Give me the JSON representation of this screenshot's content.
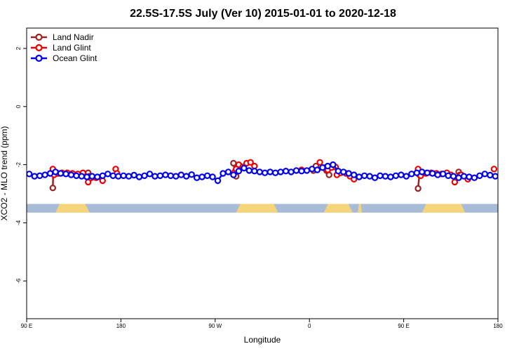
{
  "chart_data": {
    "type": "line",
    "title": "22.5S-17.5S July (Ver 10)   2015-01-01 to 2020-12-18",
    "xlabel": "Longitude",
    "ylabel": "XCO2 - MLO trend (ppm)",
    "xlim": [
      90,
      450
    ],
    "ylim": [
      -7.3,
      2.7
    ],
    "x_ticks": [
      {
        "value": 90,
        "label": "90 E"
      },
      {
        "value": 162,
        "label": "180"
      },
      {
        "value": 234,
        "label": "90 W"
      },
      {
        "value": 306,
        "label": "0"
      },
      {
        "value": 378,
        "label": "90 E"
      },
      {
        "value": 450,
        "label": "180"
      }
    ],
    "y_ticks": [
      {
        "value": 2,
        "label": "2"
      },
      {
        "value": 0,
        "label": "0"
      },
      {
        "value": -2,
        "label": "-2"
      },
      {
        "value": -4,
        "label": "-4"
      },
      {
        "value": -6,
        "label": "-6"
      }
    ],
    "land_strip": {
      "y_range": [
        -3.65,
        -3.35
      ],
      "ocean_color": "#a8bcd8",
      "land_color": "#f5d57a",
      "land_segments": [
        [
          112,
          138
        ],
        [
          250,
          282
        ],
        [
          317,
          339
        ],
        [
          343,
          346
        ],
        [
          392,
          425
        ]
      ]
    },
    "legend": {
      "position": "top-left"
    },
    "series": [
      {
        "name": "Land Nadir",
        "color": "#9b2323",
        "segments": [
          [
            [
              110,
              -2.8
            ],
            [
              110.3,
              -2.28
            ],
            [
              112,
              -2.3
            ]
          ],
          [
            [
              137,
              -2.28
            ],
            [
              138,
              -2.4
            ]
          ],
          [
            [
              248,
              -1.95
            ],
            [
              249,
              -2.25
            ],
            [
              250,
              -2.4
            ]
          ],
          [
            [
              253,
              -2.05
            ],
            [
              255,
              -2.1
            ]
          ],
          [
            [
              309,
              -2.2
            ],
            [
              311,
              -2.05
            ]
          ],
          [
            [
              319,
              -2.2
            ],
            [
              321,
              -2.35
            ]
          ],
          [
            [
              389,
              -2.82
            ],
            [
              390,
              -2.35
            ]
          ],
          [
            [
              420,
              -2.25
            ],
            [
              421,
              -2.35
            ]
          ]
        ]
      },
      {
        "name": "Land Glint",
        "color": "#ee0000",
        "segments": [
          [
            [
              110,
              -2.15
            ],
            [
              111,
              -2.35
            ],
            [
              114,
              -2.3
            ],
            [
              117,
              -2.28
            ],
            [
              121,
              -2.28
            ],
            [
              125,
              -2.3
            ],
            [
              129,
              -2.32
            ],
            [
              133,
              -2.28
            ],
            [
              137,
              -2.6
            ],
            [
              143,
              -2.45
            ],
            [
              148,
              -2.55
            ]
          ],
          [
            [
              158,
              -2.15
            ],
            [
              159,
              -2.3
            ]
          ],
          [
            [
              249,
              -2.25
            ],
            [
              250,
              -2.15
            ],
            [
              252,
              -2.0
            ],
            [
              255,
              -2.08
            ],
            [
              258,
              -1.95
            ],
            [
              261,
              -1.92
            ],
            [
              264,
              -2.05
            ]
          ],
          [
            [
              300,
              -2.18
            ]
          ],
          [
            [
              314,
              -1.92
            ],
            [
              316,
              -2.1
            ],
            [
              318,
              -2.1
            ],
            [
              320,
              -2.18
            ],
            [
              323,
              -2.1
            ],
            [
              326,
              -2.08
            ],
            [
              327,
              -2.35
            ],
            [
              330,
              -2.28
            ],
            [
              334,
              -2.3
            ],
            [
              337,
              -2.4
            ],
            [
              340,
              -2.5
            ]
          ],
          [
            [
              389,
              -2.15
            ],
            [
              391,
              -2.38
            ],
            [
              395,
              -2.3
            ],
            [
              399,
              -2.28
            ],
            [
              403,
              -2.3
            ],
            [
              407,
              -2.32
            ],
            [
              411,
              -2.28
            ],
            [
              414,
              -2.35
            ],
            [
              417,
              -2.6
            ]
          ],
          [
            [
              422,
              -2.35
            ],
            [
              427,
              -2.5
            ]
          ],
          [
            [
              447,
              -2.15
            ]
          ]
        ]
      },
      {
        "name": "Ocean Glint",
        "color": "#0000ee",
        "segments": [
          [
            [
              92,
              -2.32
            ],
            [
              96,
              -2.4
            ],
            [
              100,
              -2.38
            ],
            [
              104,
              -2.35
            ],
            [
              108,
              -2.3
            ],
            [
              112,
              -2.25
            ],
            [
              116,
              -2.3
            ],
            [
              120,
              -2.32
            ],
            [
              124,
              -2.35
            ],
            [
              128,
              -2.38
            ],
            [
              132,
              -2.4
            ],
            [
              136,
              -2.42
            ],
            [
              140,
              -2.4
            ],
            [
              144,
              -2.42
            ],
            [
              148,
              -2.38
            ],
            [
              152,
              -2.32
            ],
            [
              156,
              -2.38
            ],
            [
              160,
              -2.4
            ],
            [
              164,
              -2.38
            ],
            [
              168,
              -2.4
            ],
            [
              172,
              -2.36
            ],
            [
              176,
              -2.42
            ],
            [
              180,
              -2.38
            ],
            [
              184,
              -2.32
            ],
            [
              188,
              -2.4
            ],
            [
              192,
              -2.38
            ],
            [
              196,
              -2.35
            ],
            [
              200,
              -2.38
            ],
            [
              204,
              -2.4
            ],
            [
              208,
              -2.35
            ],
            [
              212,
              -2.4
            ],
            [
              216,
              -2.34
            ],
            [
              220,
              -2.45
            ],
            [
              224,
              -2.42
            ],
            [
              228,
              -2.38
            ],
            [
              232,
              -2.42
            ],
            [
              236,
              -2.55
            ],
            [
              240,
              -2.3
            ],
            [
              244,
              -2.25
            ],
            [
              248,
              -2.35
            ],
            [
              252,
              -2.22
            ],
            [
              256,
              -2.12
            ],
            [
              260,
              -2.2
            ],
            [
              264,
              -2.22
            ],
            [
              268,
              -2.25
            ],
            [
              272,
              -2.28
            ],
            [
              276,
              -2.25
            ],
            [
              280,
              -2.28
            ],
            [
              284,
              -2.25
            ],
            [
              288,
              -2.22
            ],
            [
              292,
              -2.25
            ],
            [
              296,
              -2.2
            ],
            [
              300,
              -2.22
            ],
            [
              304,
              -2.2
            ],
            [
              308,
              -2.15
            ],
            [
              312,
              -2.18
            ],
            [
              316,
              -2.1
            ],
            [
              320,
              -2.05
            ],
            [
              324,
              -2.0
            ],
            [
              328,
              -2.22
            ],
            [
              332,
              -2.25
            ],
            [
              336,
              -2.3
            ],
            [
              340,
              -2.35
            ],
            [
              344,
              -2.42
            ],
            [
              348,
              -2.38
            ],
            [
              352,
              -2.4
            ],
            [
              356,
              -2.45
            ],
            [
              360,
              -2.38
            ],
            [
              364,
              -2.4
            ],
            [
              368,
              -2.42
            ],
            [
              372,
              -2.38
            ],
            [
              376,
              -2.35
            ],
            [
              380,
              -2.4
            ],
            [
              384,
              -2.32
            ],
            [
              388,
              -2.28
            ],
            [
              392,
              -2.25
            ],
            [
              396,
              -2.28
            ],
            [
              400,
              -2.3
            ],
            [
              404,
              -2.35
            ],
            [
              408,
              -2.32
            ],
            [
              412,
              -2.38
            ],
            [
              416,
              -2.4
            ],
            [
              420,
              -2.45
            ],
            [
              424,
              -2.4
            ],
            [
              428,
              -2.42
            ],
            [
              432,
              -2.45
            ],
            [
              436,
              -2.38
            ],
            [
              440,
              -2.32
            ],
            [
              444,
              -2.36
            ],
            [
              448,
              -2.4
            ]
          ]
        ]
      }
    ]
  }
}
